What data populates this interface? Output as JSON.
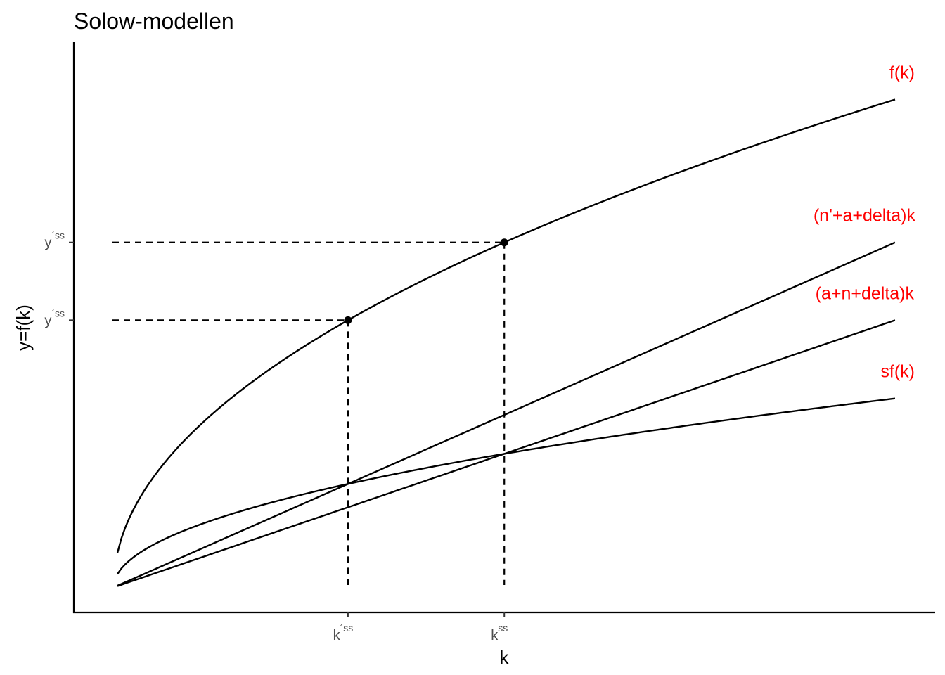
{
  "chart_data": {
    "type": "line",
    "title": "Solow-modellen",
    "xlabel": "k",
    "ylabel": "y=f(k)",
    "xlim": [
      0,
      1.05
    ],
    "ylim": [
      0,
      1.05
    ],
    "grid": false,
    "x_ticks": [
      {
        "value": 0.3,
        "base": "k",
        "sup": "´ss"
      },
      {
        "value": 0.5,
        "base": "k",
        "sup": "ss"
      }
    ],
    "y_ticks": [
      {
        "value": 0.7071,
        "base": "y",
        "sup": "´ss"
      },
      {
        "value": 0.5477,
        "base": "y",
        "sup": "´ss"
      }
    ],
    "series": [
      {
        "name": "f(k)",
        "formula": "sqrt(k)",
        "x_range": [
          0.005,
          1.0
        ],
        "label_color": "#ff0000"
      },
      {
        "name": "(n'+a+delta)k",
        "formula": "0.7071*k",
        "x_range": [
          0.005,
          1.0
        ],
        "label_color": "#ff0000"
      },
      {
        "name": "(a+n+delta)k",
        "formula": "0.5477*k",
        "x_range": [
          0.005,
          1.0
        ],
        "label_color": "#ff0000"
      },
      {
        "name": "sf(k)",
        "formula": "0.3873*sqrt(k)",
        "x_range": [
          0.005,
          1.0
        ],
        "label_color": "#ff0000"
      }
    ],
    "points": [
      {
        "x": 0.3,
        "y": 0.5477
      },
      {
        "x": 0.5,
        "y": 0.7071
      }
    ],
    "guides": [
      {
        "x": 0.3,
        "y": 0.5477
      },
      {
        "x": 0.5,
        "y": 0.7071
      }
    ]
  }
}
